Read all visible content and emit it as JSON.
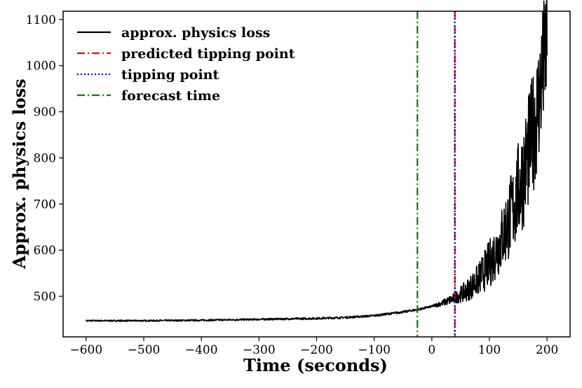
{
  "chart_data": {
    "type": "line",
    "xlabel": "Time (seconds)",
    "ylabel": "Approx. physics loss",
    "xlim": [
      -640,
      240
    ],
    "ylim": [
      412,
      1118
    ],
    "xticks": [
      -600,
      -500,
      -400,
      -300,
      -200,
      -100,
      0,
      100,
      200
    ],
    "xtick_labels": [
      "−600",
      "−500",
      "−400",
      "−300",
      "−200",
      "−100",
      "0",
      "100",
      "200"
    ],
    "yticks": [
      500,
      600,
      700,
      800,
      900,
      1000,
      1100
    ],
    "ytick_labels": [
      "500",
      "600",
      "700",
      "800",
      "900",
      "1000",
      "1100"
    ],
    "grid": false,
    "legend_position": "top-left",
    "series": [
      {
        "name": "approx. physics loss",
        "color": "#000000",
        "style": "solid",
        "x": [
          -600,
          -500,
          -400,
          -300,
          -200,
          -150,
          -100,
          -75,
          -50,
          -25,
          0,
          20,
          40,
          60,
          80,
          100,
          120,
          140,
          160,
          180,
          190,
          200
        ],
        "y": [
          447,
          447,
          448,
          450,
          452,
          454,
          458,
          462,
          466,
          471,
          478,
          486,
          496,
          512,
          535,
          570,
          620,
          685,
          770,
          880,
          960,
          1060
        ],
        "noise_x": [
          -600,
          0,
          40,
          80,
          120,
          160,
          200
        ],
        "noise_amp": [
          1.5,
          2.5,
          12,
          35,
          70,
          120,
          150
        ]
      }
    ],
    "vlines": [
      {
        "name": "predicted tipping point",
        "x": 40,
        "color": "#ff0000",
        "style": "dashdot"
      },
      {
        "name": "tipping point",
        "x": 40,
        "color": "#0000cc",
        "style": "dotted"
      },
      {
        "name": "forecast time",
        "x": -25,
        "color": "#008000",
        "style": "dashdot"
      }
    ]
  }
}
